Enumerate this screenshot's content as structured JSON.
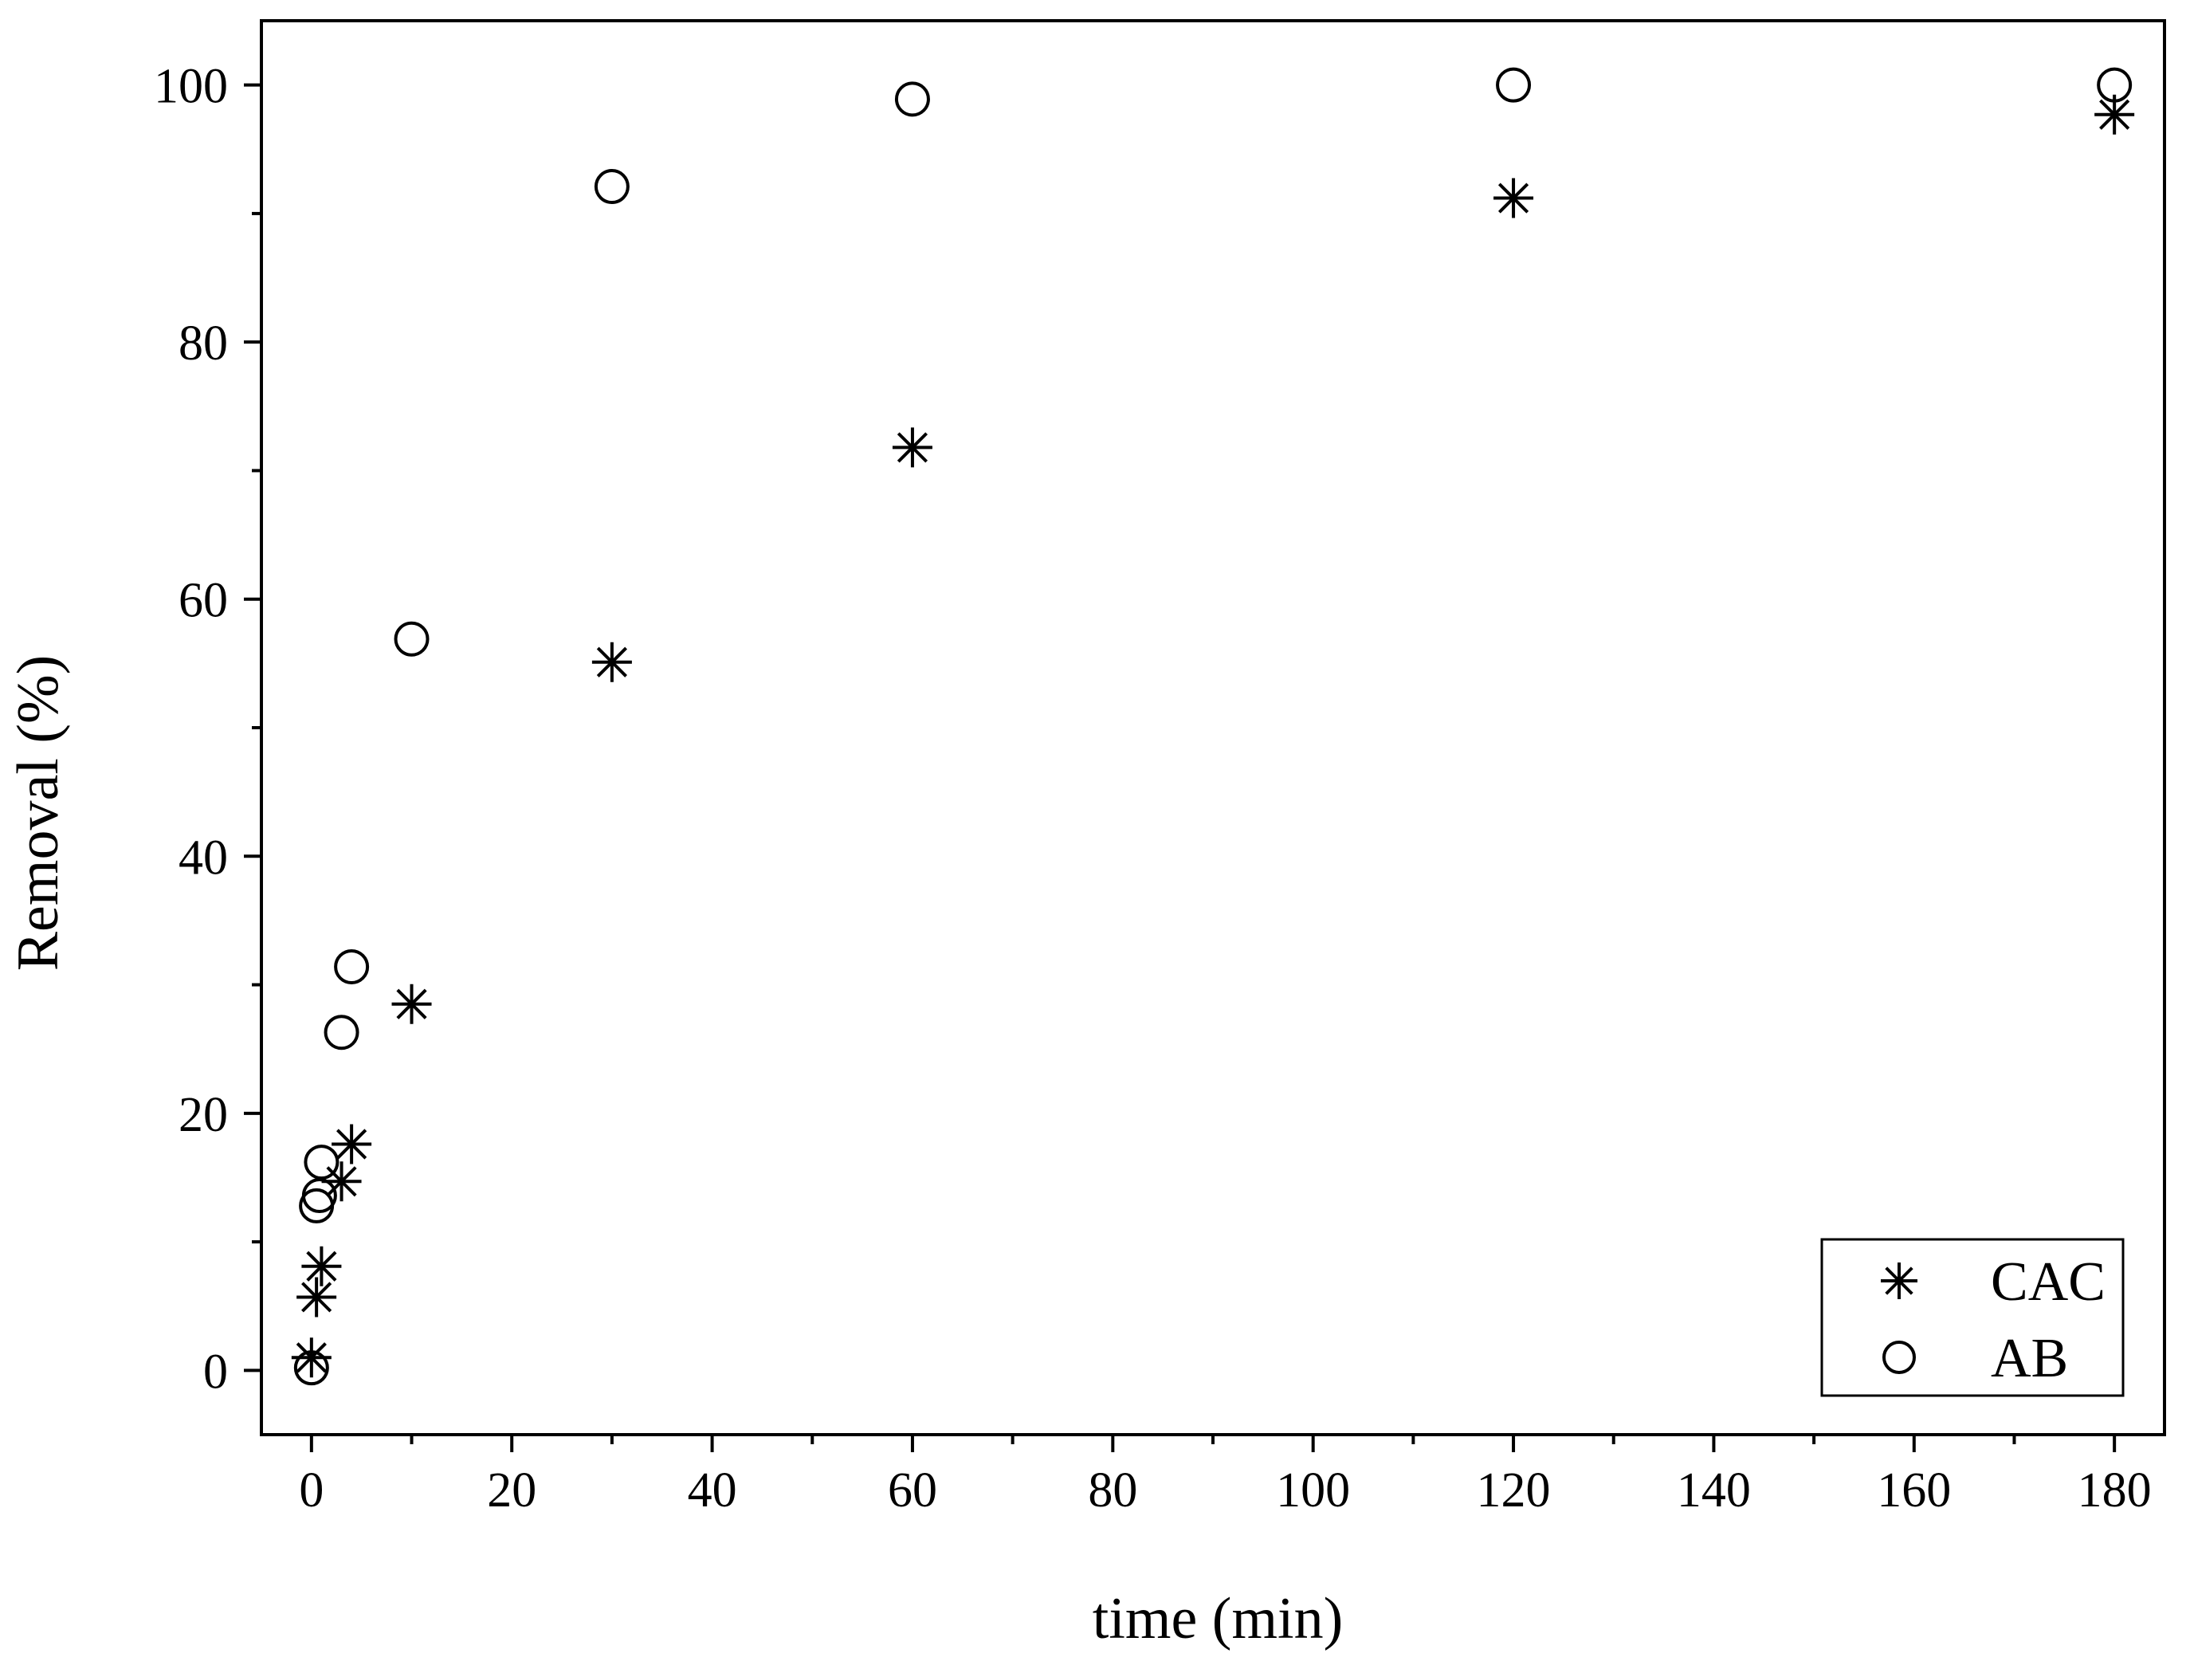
{
  "chart_data": {
    "type": "scatter",
    "title": "",
    "xlabel": "time (min)",
    "ylabel": "Removal (%)",
    "xlim": [
      -5,
      185
    ],
    "ylim": [
      -5,
      105
    ],
    "x_ticks": [
      0,
      20,
      40,
      60,
      80,
      100,
      120,
      140,
      160,
      180
    ],
    "y_ticks": [
      0,
      20,
      40,
      60,
      80,
      100
    ],
    "grid": false,
    "legend": "bottom-right",
    "series": [
      {
        "name": "CAC",
        "marker": "asterisk",
        "color": "#000000",
        "points": [
          {
            "x": 0,
            "y": 1.0
          },
          {
            "x": 0.5,
            "y": 5.7
          },
          {
            "x": 1,
            "y": 8.1
          },
          {
            "x": 3,
            "y": 14.7
          },
          {
            "x": 4,
            "y": 17.6
          },
          {
            "x": 10,
            "y": 28.5
          },
          {
            "x": 30,
            "y": 55.1
          },
          {
            "x": 60,
            "y": 71.8
          },
          {
            "x": 120,
            "y": 91.2
          },
          {
            "x": 180,
            "y": 97.7
          }
        ]
      },
      {
        "name": "AB",
        "marker": "circle",
        "color": "#000000",
        "points": [
          {
            "x": 0,
            "y": 0.2
          },
          {
            "x": 0.5,
            "y": 12.8
          },
          {
            "x": 0.8,
            "y": 13.6
          },
          {
            "x": 1,
            "y": 16.2
          },
          {
            "x": 3,
            "y": 26.3
          },
          {
            "x": 4,
            "y": 31.4
          },
          {
            "x": 10,
            "y": 56.9
          },
          {
            "x": 30,
            "y": 92.1
          },
          {
            "x": 60,
            "y": 98.9
          },
          {
            "x": 120,
            "y": 100
          },
          {
            "x": 180,
            "y": 100
          }
        ]
      }
    ]
  }
}
